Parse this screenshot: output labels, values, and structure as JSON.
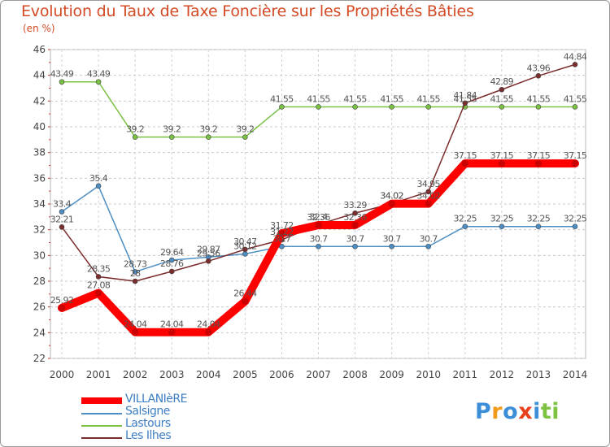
{
  "chart_data": {
    "type": "line",
    "title": "Evolution du Taux de Taxe Foncière sur les Propriétés Bâties",
    "unit_label": "(en %)",
    "x": [
      "2000",
      "2001",
      "2002",
      "2003",
      "2004",
      "2005",
      "2006",
      "2007",
      "2008",
      "2009",
      "2010",
      "2011",
      "2012",
      "2013",
      "2014"
    ],
    "ylim": [
      22,
      46
    ],
    "yticks": [
      "22",
      "24",
      "26",
      "28",
      "30",
      "32",
      "34",
      "36",
      "38",
      "40",
      "42",
      "44",
      "46"
    ],
    "grid": true,
    "series": [
      {
        "name": "VILLANIèRE",
        "color": "#ff0000",
        "values": [
          25.92,
          27.08,
          24.04,
          24.04,
          24.04,
          26.44,
          31.72,
          32.36,
          32.36,
          34.02,
          34.02,
          37.15,
          37.15,
          37.15,
          37.15
        ],
        "labels": [
          "25.92",
          "27.08",
          "24.04",
          "24.04",
          "24.04",
          "26.44",
          "31.72",
          "32.36",
          "32.36",
          "34.02",
          "34.02",
          "37.15",
          "37.15",
          "37.15",
          "37.15"
        ]
      },
      {
        "name": "Salsigne",
        "color": "#4c8ec4",
        "values": [
          33.4,
          35.4,
          28.73,
          29.64,
          29.87,
          30.12,
          30.7,
          30.7,
          30.7,
          30.7,
          30.7,
          32.25,
          32.25,
          32.25,
          32.25
        ],
        "labels": [
          "33.4",
          "35.4",
          "28.73",
          "29.64",
          "29.87",
          "30.12",
          "30.7",
          "30.7",
          "30.7",
          "30.7",
          "30.7",
          "32.25",
          "32.25",
          "32.25",
          "32.25"
        ]
      },
      {
        "name": "Lastours",
        "color": "#7ac143",
        "values": [
          43.49,
          43.49,
          39.2,
          39.2,
          39.2,
          39.2,
          41.55,
          41.55,
          41.55,
          41.55,
          41.55,
          41.55,
          41.55,
          41.55,
          41.55
        ],
        "labels": [
          "43.49",
          "43.49",
          "39.2",
          "39.2",
          "39.2",
          "39.2",
          "41.55",
          "41.55",
          "41.55",
          "41.55",
          "41.55",
          "41.55",
          "41.55",
          "41.55",
          "41.55"
        ]
      },
      {
        "name": "Les Ilhes",
        "color": "#7b2c2c",
        "values": [
          32.21,
          28.35,
          28,
          28.76,
          29.56,
          30.47,
          31.22,
          32.4,
          33.29,
          34.02,
          34.95,
          41.84,
          42.89,
          43.96,
          44.84
        ],
        "labels": [
          "32.21",
          "28.35",
          "28",
          "28.76",
          "29.56",
          "30.47",
          "31.22",
          "32.4",
          "33.29",
          "34.02",
          "34.95",
          "41.84",
          "42.89",
          "43.96",
          "44.84"
        ]
      }
    ]
  },
  "logo": {
    "letters": [
      "P",
      "r",
      "o",
      "x",
      "i",
      "t",
      "i"
    ]
  }
}
